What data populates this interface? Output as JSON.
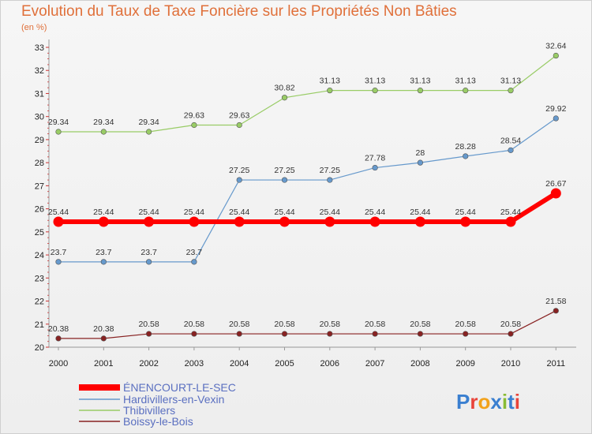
{
  "header": {
    "title": "Evolution du Taux de Taxe Foncière sur les Propriétés Non Bâties",
    "unit": "(en %)"
  },
  "chart_data": {
    "type": "line",
    "x": [
      "2000",
      "2001",
      "2002",
      "2003",
      "2004",
      "2005",
      "2006",
      "2007",
      "2008",
      "2009",
      "2010",
      "2011"
    ],
    "ylim": [
      20,
      33
    ],
    "yticks": [
      20,
      21,
      22,
      23,
      24,
      25,
      26,
      27,
      28,
      29,
      30,
      31,
      32,
      33
    ],
    "grid": false,
    "legend_position": "bottom-left",
    "series": [
      {
        "name": "Thibivillers",
        "color": "#99cc66",
        "labels": [
          "29.34",
          "29.34",
          "29.34",
          "29.63",
          "29.63",
          "30.82",
          "31.13",
          "31.13",
          "31.13",
          "31.13",
          "31.13",
          "32.64"
        ],
        "values": [
          29.34,
          29.34,
          29.34,
          29.63,
          29.63,
          30.82,
          31.13,
          31.13,
          31.13,
          31.13,
          31.13,
          32.64
        ]
      },
      {
        "name": "Hardivillers-en-Vexin",
        "color": "#6699cc",
        "labels": [
          "23.7",
          "23.7",
          "23.7",
          "23.7",
          "27.25",
          "27.25",
          "27.25",
          "27.78",
          "28",
          "28.28",
          "28.54",
          "29.92"
        ],
        "values": [
          23.7,
          23.7,
          23.7,
          23.7,
          27.25,
          27.25,
          27.25,
          27.78,
          28,
          28.28,
          28.54,
          29.92
        ]
      },
      {
        "name": "ÉNENCOURT-LE-SEC",
        "color": "#ff0000",
        "labels": [
          "25.44",
          "25.44",
          "25.44",
          "25.44",
          "25.44",
          "25.44",
          "25.44",
          "25.44",
          "25.44",
          "25.44",
          "25.44",
          "26.67"
        ],
        "values": [
          25.44,
          25.44,
          25.44,
          25.44,
          25.44,
          25.44,
          25.44,
          25.44,
          25.44,
          25.44,
          25.44,
          26.67
        ]
      },
      {
        "name": "Boissy-le-Bois",
        "color": "#882222",
        "labels": [
          "20.38",
          "20.38",
          "20.58",
          "20.58",
          "20.58",
          "20.58",
          "20.58",
          "20.58",
          "20.58",
          "20.58",
          "20.58",
          "21.58"
        ],
        "values": [
          20.38,
          20.38,
          20.58,
          20.58,
          20.58,
          20.58,
          20.58,
          20.58,
          20.58,
          20.58,
          20.58,
          21.58
        ]
      }
    ],
    "legend": [
      "ÉNENCOURT-LE-SEC",
      "Hardivillers-en-Vexin",
      "Thibivillers",
      "Boissy-le-Bois"
    ]
  },
  "logo": {
    "text": "Proxiti"
  }
}
